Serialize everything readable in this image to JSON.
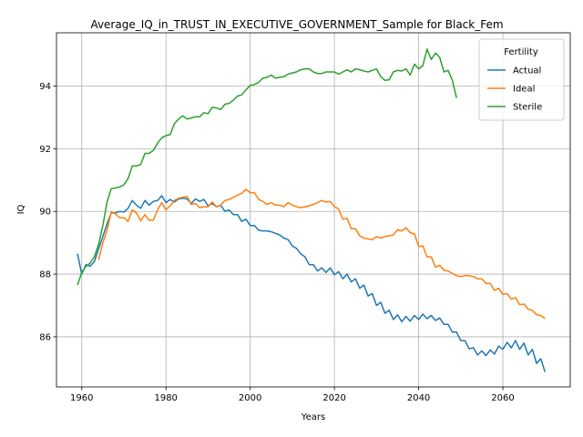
{
  "chart_data": {
    "type": "line",
    "title": "Average_IQ_in_TRUST_IN_EXECUTIVE_GOVERNMENT_Sample for Black_Fem",
    "xlabel": "Years",
    "ylabel": "IQ",
    "xlim": [
      1954,
      2076
    ],
    "ylim": [
      84.4,
      95.7
    ],
    "xticks": [
      1960,
      1980,
      2000,
      2020,
      2040,
      2060
    ],
    "yticks": [
      86,
      88,
      90,
      92,
      94
    ],
    "grid": true,
    "legend": {
      "title": "Fertility",
      "placement": "top-right"
    },
    "series": [
      {
        "name": "Actual",
        "color": "#1f77b4",
        "x": [
          1959,
          1960,
          1961,
          1962,
          1963,
          1964,
          1965,
          1966,
          1967,
          1968,
          1969,
          1970,
          1971,
          1972,
          1973,
          1974,
          1975,
          1976,
          1977,
          1978,
          1979,
          1980,
          1981,
          1982,
          1983,
          1984,
          1985,
          1986,
          1987,
          1988,
          1989,
          1990,
          1991,
          1992,
          1993,
          1994,
          1995,
          1996,
          1997,
          1998,
          1999,
          2000,
          2001,
          2002,
          2003,
          2004,
          2005,
          2006,
          2007,
          2008,
          2009,
          2010,
          2011,
          2012,
          2013,
          2014,
          2015,
          2016,
          2017,
          2018,
          2019,
          2020,
          2021,
          2022,
          2023,
          2024,
          2025,
          2026,
          2027,
          2028,
          2029,
          2030,
          2031,
          2032,
          2033,
          2034,
          2035,
          2036,
          2037,
          2038,
          2039,
          2040,
          2041,
          2042,
          2043,
          2044,
          2045,
          2046,
          2047,
          2048,
          2049,
          2050,
          2051,
          2052,
          2053,
          2054,
          2055,
          2056,
          2057,
          2058,
          2059,
          2060,
          2061,
          2062,
          2063,
          2064,
          2065,
          2066,
          2067,
          2068,
          2069,
          2070
        ],
        "values": [
          88.65,
          88.0,
          88.3,
          88.25,
          88.4,
          88.8,
          89.2,
          89.6,
          89.95,
          89.95,
          90.0,
          89.98,
          90.1,
          90.35,
          90.2,
          90.1,
          90.35,
          90.2,
          90.32,
          90.35,
          90.5,
          90.28,
          90.38,
          90.3,
          90.4,
          90.42,
          90.4,
          90.25,
          90.4,
          90.32,
          90.38,
          90.18,
          90.25,
          90.15,
          90.2,
          90.0,
          90.05,
          89.9,
          89.9,
          89.68,
          89.75,
          89.55,
          89.55,
          89.4,
          89.38,
          89.38,
          89.35,
          89.3,
          89.25,
          89.15,
          89.1,
          88.9,
          88.82,
          88.65,
          88.55,
          88.3,
          88.3,
          88.1,
          88.2,
          88.05,
          88.2,
          87.98,
          88.08,
          87.85,
          88.0,
          87.75,
          87.85,
          87.55,
          87.65,
          87.3,
          87.38,
          87.0,
          87.1,
          86.75,
          86.85,
          86.55,
          86.7,
          86.48,
          86.65,
          86.5,
          86.68,
          86.55,
          86.72,
          86.58,
          86.68,
          86.52,
          86.6,
          86.4,
          86.4,
          86.15,
          86.15,
          85.88,
          85.88,
          85.62,
          85.65,
          85.42,
          85.55,
          85.4,
          85.58,
          85.45,
          85.7,
          85.6,
          85.82,
          85.65,
          85.88,
          85.6,
          85.8,
          85.42,
          85.6,
          85.15,
          85.3,
          84.88
        ]
      },
      {
        "name": "Ideal",
        "color": "#ff7f0e",
        "x": [
          1964,
          1965,
          1966,
          1967,
          1968,
          1969,
          1970,
          1971,
          1972,
          1973,
          1974,
          1975,
          1976,
          1977,
          1978,
          1979,
          1980,
          1981,
          1982,
          1983,
          1984,
          1985,
          1986,
          1987,
          1988,
          1989,
          1990,
          1991,
          1992,
          1993,
          1994,
          1995,
          1996,
          1997,
          1998,
          1999,
          2000,
          2001,
          2002,
          2003,
          2004,
          2005,
          2006,
          2007,
          2008,
          2009,
          2010,
          2011,
          2012,
          2013,
          2014,
          2015,
          2016,
          2017,
          2018,
          2019,
          2020,
          2021,
          2022,
          2023,
          2024,
          2025,
          2026,
          2027,
          2028,
          2029,
          2030,
          2031,
          2032,
          2033,
          2034,
          2035,
          2036,
          2037,
          2038,
          2039,
          2040,
          2041,
          2042,
          2043,
          2044,
          2045,
          2046,
          2047,
          2048,
          2049,
          2050,
          2051,
          2052,
          2053,
          2054,
          2055,
          2056,
          2057,
          2058,
          2059,
          2060,
          2061,
          2062,
          2063,
          2064,
          2065,
          2066,
          2067,
          2068,
          2069,
          2070
        ],
        "values": [
          88.45,
          89.0,
          89.4,
          89.98,
          89.92,
          89.8,
          89.8,
          89.68,
          90.05,
          89.95,
          89.7,
          89.9,
          89.72,
          89.72,
          90.05,
          90.28,
          90.05,
          90.18,
          90.35,
          90.42,
          90.45,
          90.48,
          90.22,
          90.25,
          90.12,
          90.15,
          90.15,
          90.3,
          90.15,
          90.2,
          90.35,
          90.38,
          90.45,
          90.52,
          90.58,
          90.7,
          90.6,
          90.6,
          90.38,
          90.32,
          90.22,
          90.28,
          90.2,
          90.2,
          90.15,
          90.28,
          90.2,
          90.15,
          90.12,
          90.15,
          90.18,
          90.22,
          90.28,
          90.35,
          90.3,
          90.32,
          90.15,
          90.08,
          89.75,
          89.78,
          89.45,
          89.45,
          89.22,
          89.15,
          89.12,
          89.1,
          89.2,
          89.15,
          89.2,
          89.22,
          89.25,
          89.42,
          89.38,
          89.48,
          89.32,
          89.28,
          88.88,
          88.9,
          88.55,
          88.55,
          88.22,
          88.28,
          88.12,
          88.1,
          88.02,
          87.95,
          87.92,
          87.95,
          87.95,
          87.92,
          87.85,
          87.85,
          87.7,
          87.7,
          87.48,
          87.55,
          87.35,
          87.38,
          87.2,
          87.25,
          87.02,
          87.05,
          86.88,
          86.85,
          86.7,
          86.68,
          86.58
        ]
      },
      {
        "name": "Sterile",
        "color": "#2ca02c",
        "x": [
          1959,
          1960,
          1961,
          1962,
          1963,
          1964,
          1965,
          1966,
          1967,
          1968,
          1969,
          1970,
          1971,
          1972,
          1973,
          1974,
          1975,
          1976,
          1977,
          1978,
          1979,
          1980,
          1981,
          1982,
          1983,
          1984,
          1985,
          1986,
          1987,
          1988,
          1989,
          1990,
          1991,
          1992,
          1993,
          1994,
          1995,
          1996,
          1997,
          1998,
          1999,
          2000,
          2001,
          2002,
          2003,
          2004,
          2005,
          2006,
          2007,
          2008,
          2009,
          2010,
          2011,
          2012,
          2013,
          2014,
          2015,
          2016,
          2017,
          2018,
          2019,
          2020,
          2021,
          2022,
          2023,
          2024,
          2025,
          2026,
          2027,
          2028,
          2029,
          2030,
          2031,
          2032,
          2033,
          2034,
          2035,
          2036,
          2037,
          2038,
          2039,
          2040,
          2041,
          2042,
          2043,
          2044,
          2045,
          2046,
          2047,
          2048,
          2049
        ],
        "values": [
          87.65,
          88.05,
          88.25,
          88.35,
          88.55,
          88.95,
          89.55,
          90.3,
          90.72,
          90.75,
          90.78,
          90.85,
          91.05,
          91.45,
          91.45,
          91.5,
          91.85,
          91.85,
          91.95,
          92.18,
          92.35,
          92.42,
          92.45,
          92.8,
          92.95,
          93.05,
          92.95,
          92.98,
          93.02,
          93.02,
          93.15,
          93.12,
          93.32,
          93.3,
          93.25,
          93.42,
          93.45,
          93.55,
          93.68,
          93.72,
          93.88,
          94.02,
          94.05,
          94.12,
          94.25,
          94.28,
          94.35,
          94.25,
          94.28,
          94.3,
          94.38,
          94.42,
          94.45,
          94.52,
          94.55,
          94.55,
          94.45,
          94.4,
          94.4,
          94.45,
          94.45,
          94.45,
          94.38,
          94.45,
          94.52,
          94.45,
          94.55,
          94.52,
          94.48,
          94.45,
          94.5,
          94.55,
          94.3,
          94.18,
          94.2,
          94.45,
          94.5,
          94.48,
          94.55,
          94.35,
          94.7,
          94.55,
          94.65,
          95.18,
          94.85,
          95.05,
          94.92,
          94.45,
          94.5,
          94.18,
          93.62
        ]
      }
    ]
  }
}
